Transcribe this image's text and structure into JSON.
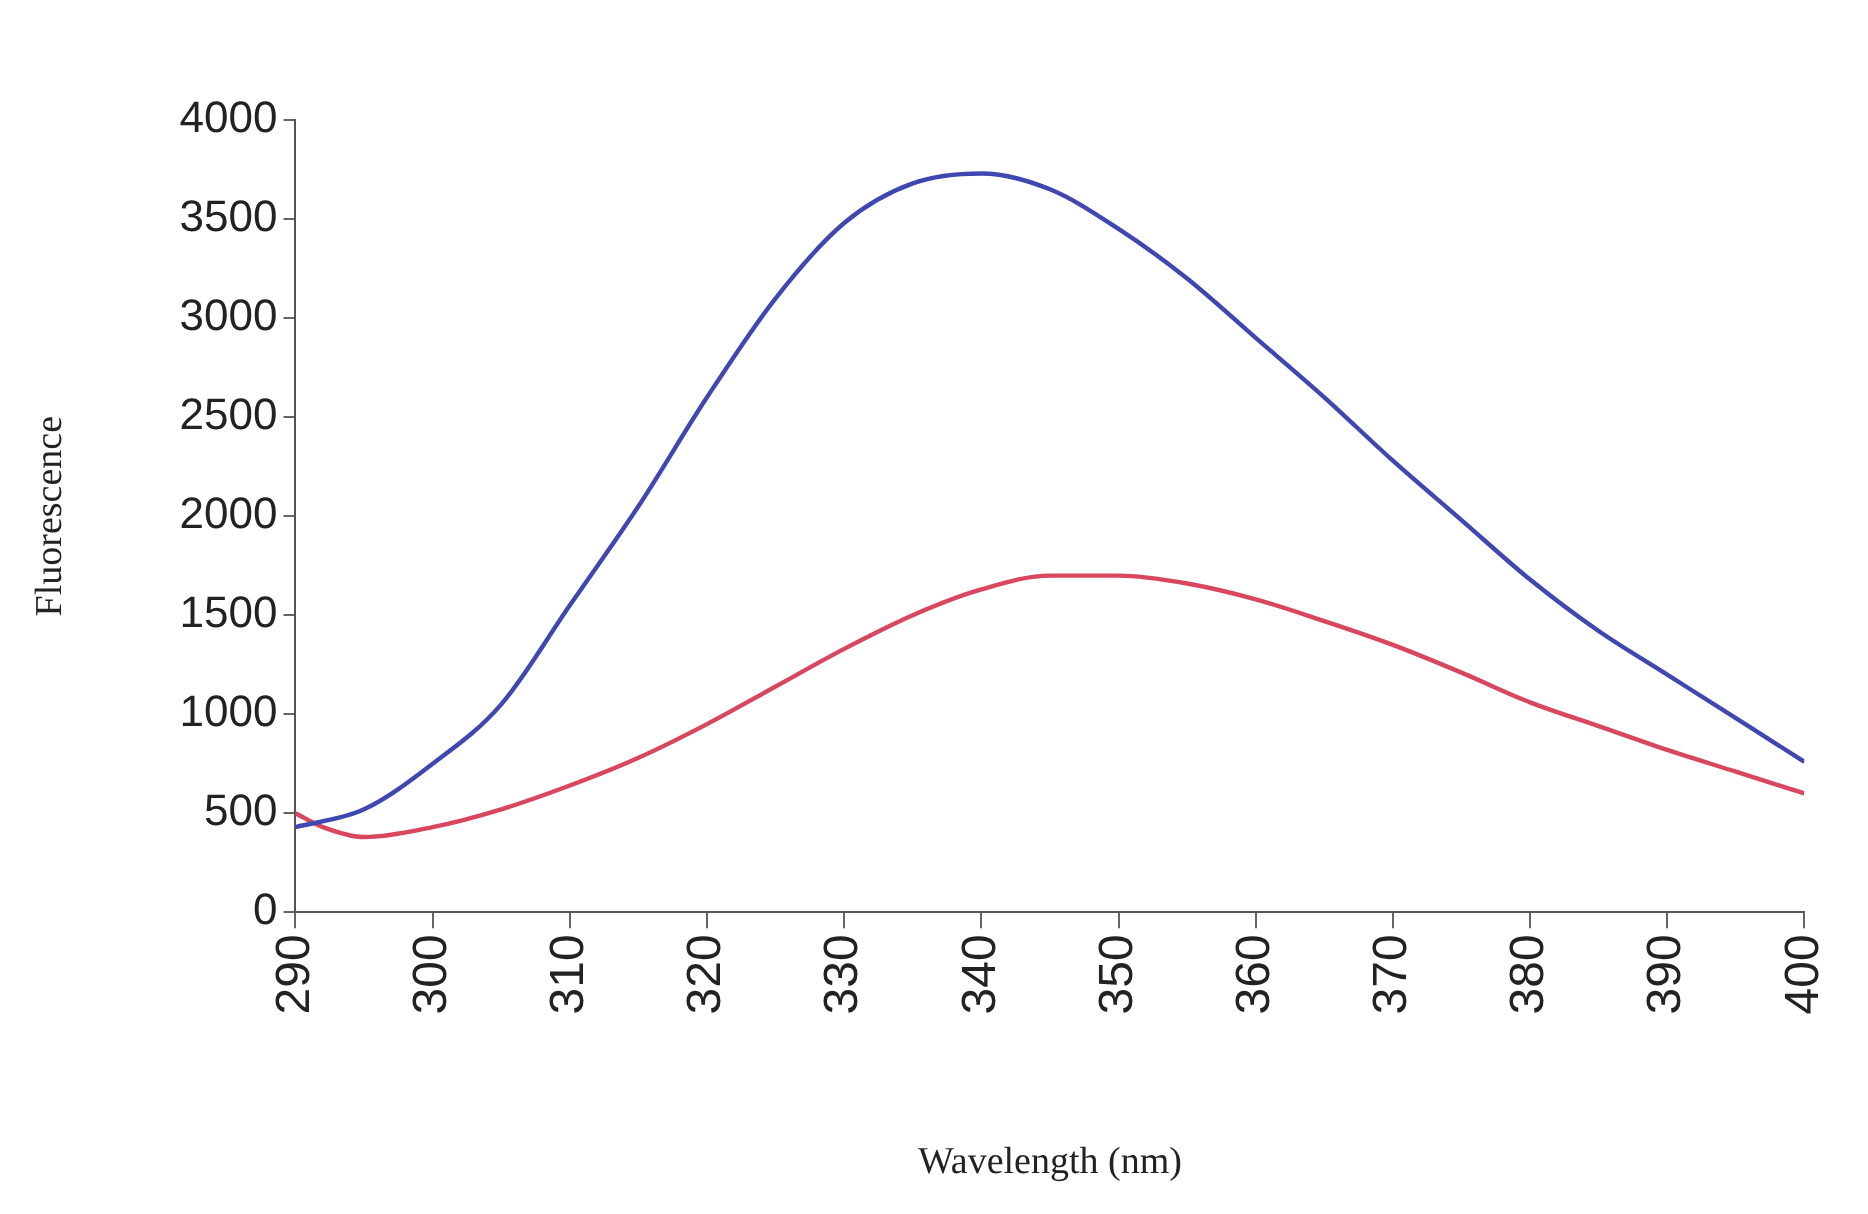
{
  "chart_data": {
    "type": "line",
    "xlabel": "Wavelength (nm)",
    "ylabel": "Fluorescence",
    "xlim": [
      290,
      400
    ],
    "xticks": [
      290,
      300,
      310,
      320,
      330,
      340,
      350,
      360,
      370,
      380,
      390,
      400
    ],
    "ylim": [
      0,
      4000
    ],
    "yticks": [
      0,
      500,
      1000,
      1500,
      2000,
      2500,
      3000,
      3500,
      4000
    ],
    "grid": false,
    "legend": false,
    "marker": "none",
    "line_style": "solid",
    "series": [
      {
        "color": "#3f48b0",
        "x": [
          290,
          295,
          300,
          305,
          310,
          315,
          320,
          325,
          330,
          335,
          340,
          345,
          350,
          355,
          360,
          365,
          370,
          375,
          380,
          385,
          390,
          395,
          400
        ],
        "values": [
          430,
          520,
          750,
          1050,
          1550,
          2050,
          2600,
          3100,
          3480,
          3680,
          3730,
          3650,
          3450,
          3200,
          2900,
          2600,
          2280,
          1980,
          1680,
          1420,
          1200,
          980,
          760
        ]
      },
      {
        "color": "#d9475e",
        "x": [
          290,
          292,
          295,
          300,
          305,
          310,
          315,
          320,
          325,
          330,
          335,
          340,
          345,
          350,
          355,
          360,
          365,
          370,
          375,
          380,
          385,
          390,
          395,
          400
        ],
        "values": [
          500,
          430,
          380,
          430,
          520,
          640,
          780,
          950,
          1140,
          1330,
          1500,
          1630,
          1700,
          1700,
          1660,
          1580,
          1470,
          1350,
          1210,
          1060,
          940,
          820,
          710,
          600
        ]
      }
    ]
  }
}
